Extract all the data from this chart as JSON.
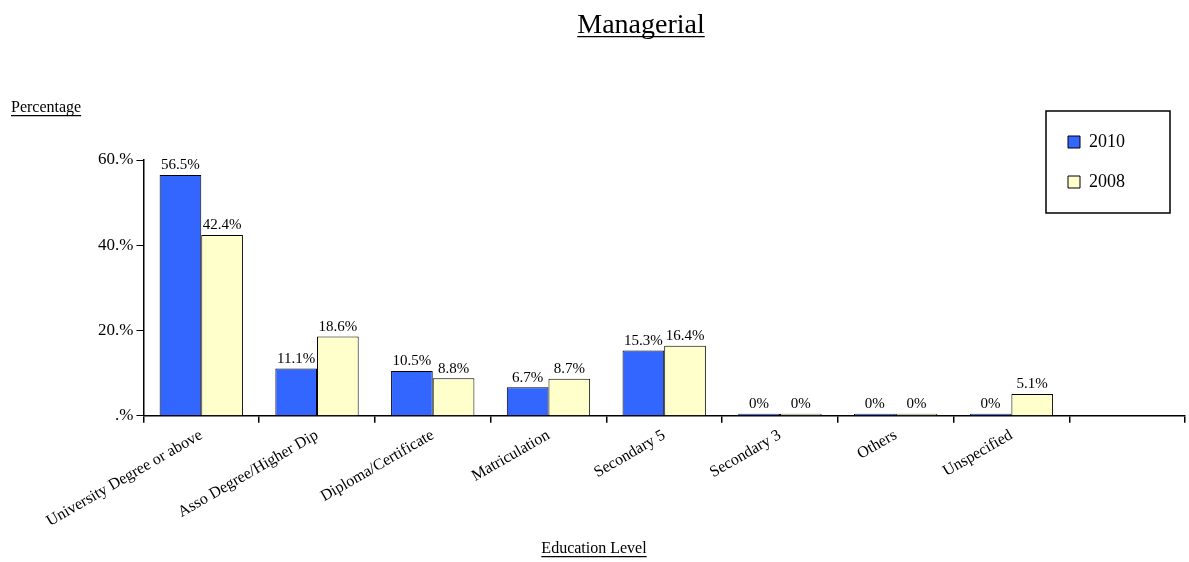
{
  "chart_data": {
    "type": "bar",
    "title": "Managerial",
    "xlabel": "Education Level",
    "ylabel": "Percentage",
    "categories": [
      "University Degree or above",
      "Asso Degree/Higher Dip",
      "Diploma/Certificate",
      "Matriculation",
      "Secondary 5",
      "Secondary 3",
      "Others",
      "Unspecified",
      null
    ],
    "series": [
      {
        "name": "2010",
        "color": "#3366ff",
        "values": [
          56.5,
          11.1,
          10.5,
          6.7,
          15.3,
          0,
          0,
          0,
          null
        ],
        "value_labels": [
          "56.5%",
          "11.1%",
          "10.5%",
          "6.7%",
          "15.3%",
          "0%",
          "0%",
          "0%",
          null
        ]
      },
      {
        "name": "2008",
        "color": "#ffffcc",
        "values": [
          42.4,
          18.6,
          8.8,
          8.7,
          16.4,
          0,
          0,
          5.1,
          null
        ],
        "value_labels": [
          "42.4%",
          "18.6%",
          "8.8%",
          "8.7%",
          "16.4%",
          "0%",
          "0%",
          "5.1%",
          null
        ]
      }
    ],
    "ylim": [
      0,
      60
    ],
    "yticks": [
      {
        "value": 0,
        "label": ".%"
      },
      {
        "value": 20,
        "label": "20.%"
      },
      {
        "value": 40,
        "label": "40.%"
      },
      {
        "value": 60,
        "label": "60.%"
      }
    ],
    "legend": "top right"
  }
}
